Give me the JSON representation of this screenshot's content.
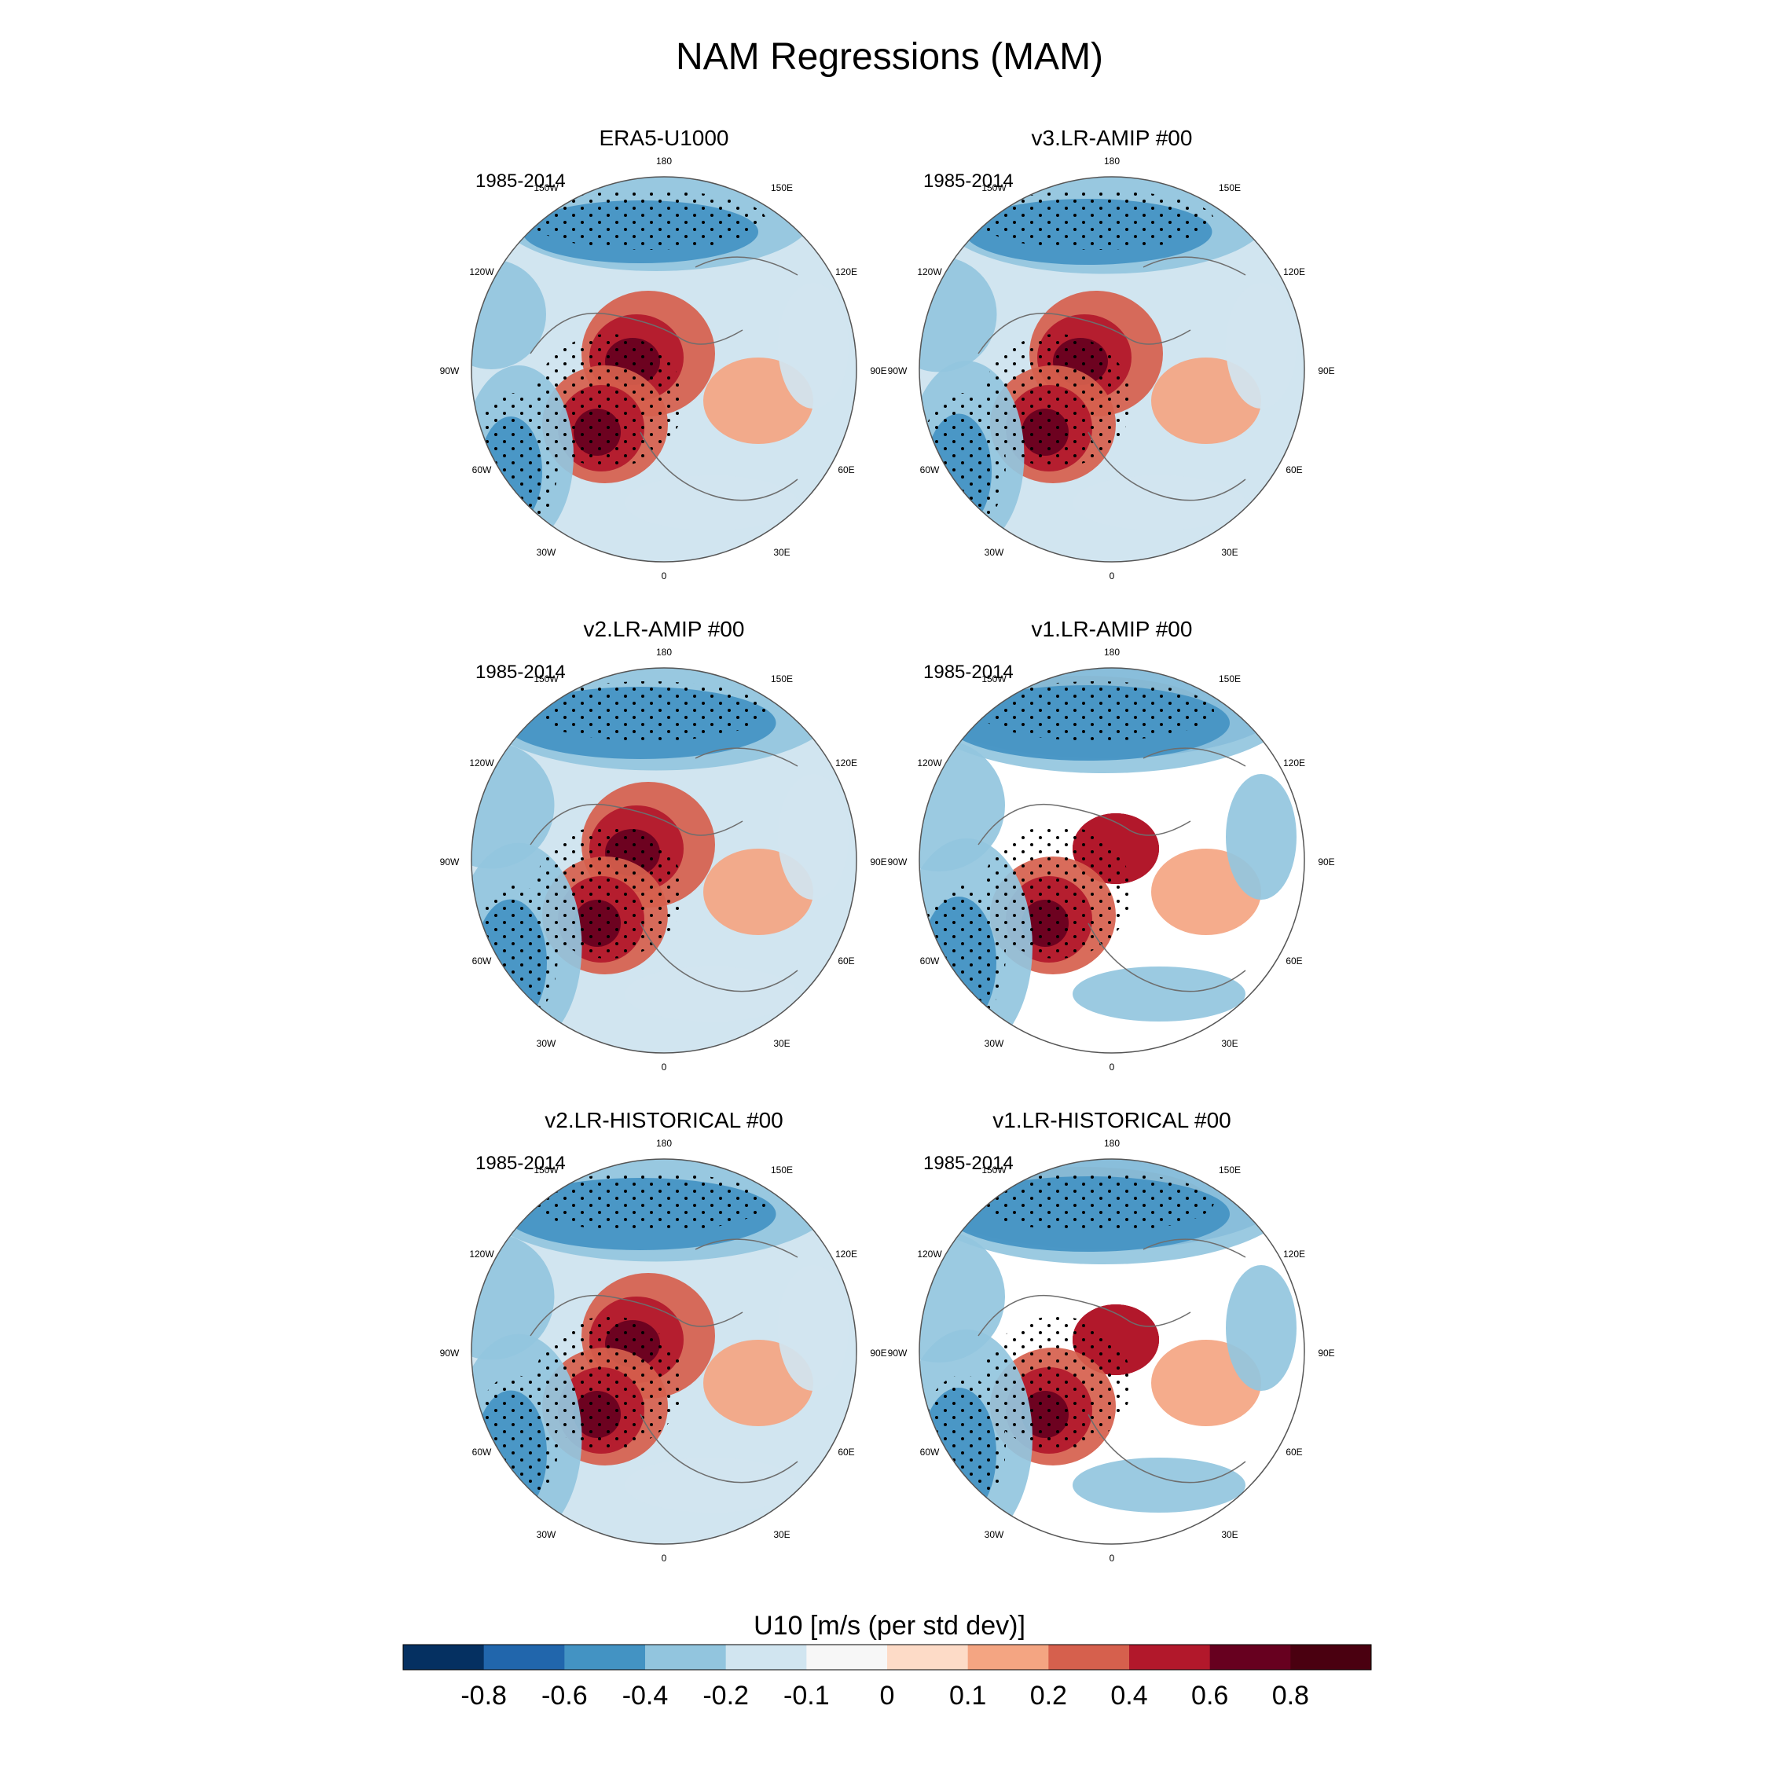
{
  "figure": {
    "title": "NAM Regressions (MAM)",
    "colorbar_title": "U10 [m/s (per std dev)]",
    "colorbar_labels": [
      "-0.8",
      "-0.6",
      "-0.4",
      "-0.2",
      "-0.1",
      "0",
      "0.1",
      "0.2",
      "0.4",
      "0.6",
      "0.8"
    ],
    "colorbar_colors": [
      "#053061",
      "#2166ac",
      "#4393c3",
      "#92c5de",
      "#d1e5f0",
      "#f7f7f7",
      "#fddbc7",
      "#f4a582",
      "#d6604d",
      "#b2182b",
      "#67001f",
      "#4a0010"
    ],
    "longitude_labels": {
      "top": "180",
      "bottom": "0",
      "upper_left": "150W",
      "upper_right": "150E",
      "mid_upper_left": "120W",
      "mid_upper_right": "120E",
      "left": "90W",
      "right": "90E",
      "mid_lower_left": "60W",
      "mid_lower_right": "60E",
      "lower_left": "30W",
      "lower_right": "30E"
    }
  },
  "panels": [
    {
      "title": "ERA5-U1000",
      "period": "1985-2014",
      "masked": false
    },
    {
      "title": "v3.LR-AMIP  #00",
      "period": "1985-2014",
      "masked": false
    },
    {
      "title": "v2.LR-AMIP  #00",
      "period": "1985-2014",
      "masked": false
    },
    {
      "title": "v1.LR-AMIP  #00",
      "period": "1985-2014",
      "masked": true
    },
    {
      "title": "v2.LR-HISTORICAL  #00",
      "period": "1985-2014",
      "masked": false
    },
    {
      "title": "v1.LR-HISTORICAL  #00",
      "period": "1985-2014",
      "masked": true
    }
  ]
}
